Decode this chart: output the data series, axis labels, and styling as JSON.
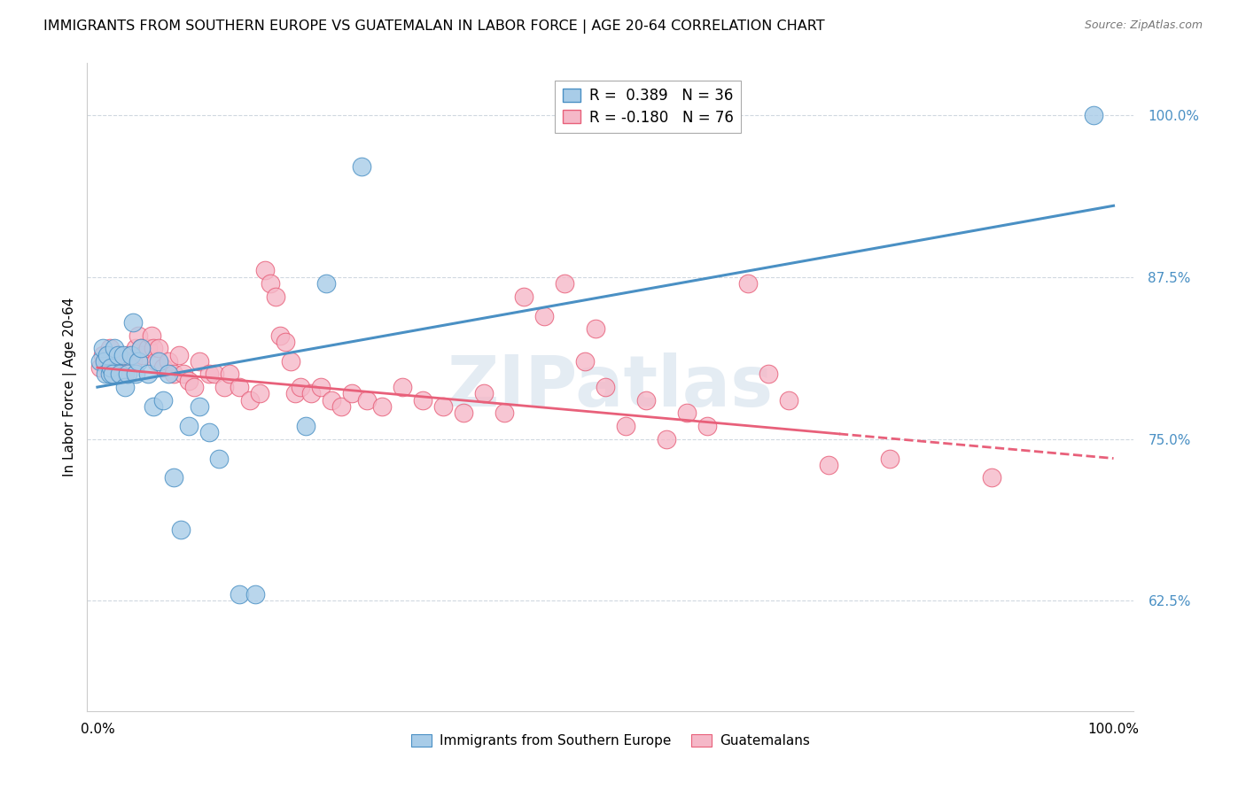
{
  "title": "IMMIGRANTS FROM SOUTHERN EUROPE VS GUATEMALAN IN LABOR FORCE | AGE 20-64 CORRELATION CHART",
  "source": "Source: ZipAtlas.com",
  "ylabel": "In Labor Force | Age 20-64",
  "yticks": [
    0.625,
    0.75,
    0.875,
    1.0
  ],
  "ytick_labels": [
    "62.5%",
    "75.0%",
    "87.5%",
    "100.0%"
  ],
  "xlim": [
    -0.01,
    1.02
  ],
  "ylim": [
    0.54,
    1.04
  ],
  "watermark": "ZIPatlas",
  "blue_color": "#a8cce8",
  "pink_color": "#f5b8c8",
  "blue_line_color": "#4a90c4",
  "pink_line_color": "#e8607a",
  "blue_scatter": [
    [
      0.003,
      0.81
    ],
    [
      0.005,
      0.82
    ],
    [
      0.007,
      0.81
    ],
    [
      0.008,
      0.8
    ],
    [
      0.01,
      0.815
    ],
    [
      0.012,
      0.8
    ],
    [
      0.013,
      0.805
    ],
    [
      0.015,
      0.8
    ],
    [
      0.017,
      0.82
    ],
    [
      0.02,
      0.815
    ],
    [
      0.022,
      0.8
    ],
    [
      0.025,
      0.815
    ],
    [
      0.027,
      0.79
    ],
    [
      0.03,
      0.8
    ],
    [
      0.033,
      0.815
    ],
    [
      0.035,
      0.84
    ],
    [
      0.038,
      0.8
    ],
    [
      0.04,
      0.81
    ],
    [
      0.043,
      0.82
    ],
    [
      0.05,
      0.8
    ],
    [
      0.055,
      0.775
    ],
    [
      0.06,
      0.81
    ],
    [
      0.065,
      0.78
    ],
    [
      0.07,
      0.8
    ],
    [
      0.075,
      0.72
    ],
    [
      0.082,
      0.68
    ],
    [
      0.09,
      0.76
    ],
    [
      0.1,
      0.775
    ],
    [
      0.11,
      0.755
    ],
    [
      0.12,
      0.735
    ],
    [
      0.14,
      0.63
    ],
    [
      0.155,
      0.63
    ],
    [
      0.205,
      0.76
    ],
    [
      0.225,
      0.87
    ],
    [
      0.26,
      0.96
    ],
    [
      0.98,
      1.0
    ]
  ],
  "pink_scatter": [
    [
      0.003,
      0.805
    ],
    [
      0.005,
      0.815
    ],
    [
      0.007,
      0.81
    ],
    [
      0.01,
      0.81
    ],
    [
      0.012,
      0.82
    ],
    [
      0.015,
      0.8
    ],
    [
      0.017,
      0.81
    ],
    [
      0.02,
      0.81
    ],
    [
      0.022,
      0.8
    ],
    [
      0.025,
      0.81
    ],
    [
      0.027,
      0.8
    ],
    [
      0.03,
      0.815
    ],
    [
      0.032,
      0.81
    ],
    [
      0.035,
      0.81
    ],
    [
      0.038,
      0.82
    ],
    [
      0.04,
      0.83
    ],
    [
      0.043,
      0.82
    ],
    [
      0.045,
      0.815
    ],
    [
      0.05,
      0.82
    ],
    [
      0.053,
      0.83
    ],
    [
      0.055,
      0.82
    ],
    [
      0.058,
      0.81
    ],
    [
      0.06,
      0.82
    ],
    [
      0.065,
      0.805
    ],
    [
      0.07,
      0.81
    ],
    [
      0.075,
      0.8
    ],
    [
      0.08,
      0.815
    ],
    [
      0.085,
      0.8
    ],
    [
      0.09,
      0.795
    ],
    [
      0.095,
      0.79
    ],
    [
      0.1,
      0.81
    ],
    [
      0.11,
      0.8
    ],
    [
      0.115,
      0.8
    ],
    [
      0.125,
      0.79
    ],
    [
      0.13,
      0.8
    ],
    [
      0.14,
      0.79
    ],
    [
      0.15,
      0.78
    ],
    [
      0.16,
      0.785
    ],
    [
      0.165,
      0.88
    ],
    [
      0.17,
      0.87
    ],
    [
      0.175,
      0.86
    ],
    [
      0.18,
      0.83
    ],
    [
      0.185,
      0.825
    ],
    [
      0.19,
      0.81
    ],
    [
      0.195,
      0.785
    ],
    [
      0.2,
      0.79
    ],
    [
      0.21,
      0.785
    ],
    [
      0.22,
      0.79
    ],
    [
      0.23,
      0.78
    ],
    [
      0.24,
      0.775
    ],
    [
      0.25,
      0.785
    ],
    [
      0.265,
      0.78
    ],
    [
      0.28,
      0.775
    ],
    [
      0.3,
      0.79
    ],
    [
      0.32,
      0.78
    ],
    [
      0.34,
      0.775
    ],
    [
      0.36,
      0.77
    ],
    [
      0.38,
      0.785
    ],
    [
      0.4,
      0.77
    ],
    [
      0.42,
      0.86
    ],
    [
      0.44,
      0.845
    ],
    [
      0.46,
      0.87
    ],
    [
      0.48,
      0.81
    ],
    [
      0.49,
      0.835
    ],
    [
      0.5,
      0.79
    ],
    [
      0.52,
      0.76
    ],
    [
      0.54,
      0.78
    ],
    [
      0.56,
      0.75
    ],
    [
      0.58,
      0.77
    ],
    [
      0.6,
      0.76
    ],
    [
      0.64,
      0.87
    ],
    [
      0.66,
      0.8
    ],
    [
      0.68,
      0.78
    ],
    [
      0.72,
      0.73
    ],
    [
      0.78,
      0.735
    ],
    [
      0.88,
      0.72
    ]
  ],
  "grid_color": "#d0d8e0",
  "title_fontsize": 11.5,
  "source_fontsize": 9,
  "axis_label_fontsize": 11,
  "tick_fontsize": 11,
  "watermark_color": "#c5d5e5",
  "watermark_alpha": 0.45,
  "legend_r1_label": "R =  0.389   N = 36",
  "legend_r2_label": "R = -0.180   N = 76",
  "bottom_legend_1": "Immigrants from Southern Europe",
  "bottom_legend_2": "Guatemalans"
}
